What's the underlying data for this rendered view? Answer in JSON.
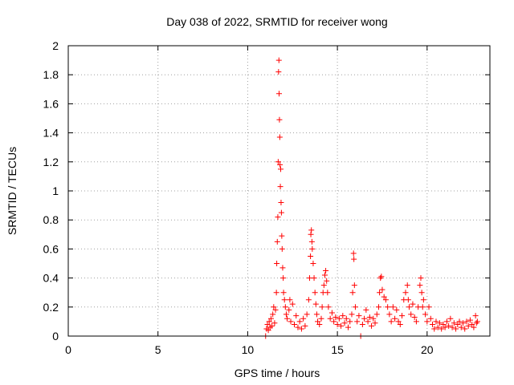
{
  "chart_data": {
    "type": "scatter",
    "title": "Day 038 of 2022, SRMTID for receiver wong",
    "xlabel": "GPS time / hours",
    "ylabel": "SRMTID / TECUs",
    "xlim": [
      0,
      23.5
    ],
    "ylim": [
      0,
      2
    ],
    "x_ticks": [
      0,
      5,
      10,
      15,
      20
    ],
    "x_tick_labels": [
      "0",
      "5",
      "10",
      "15",
      "20"
    ],
    "y_ticks": [
      0,
      0.2,
      0.4,
      0.6,
      0.8,
      1,
      1.2,
      1.4,
      1.6,
      1.8,
      2
    ],
    "y_tick_labels": [
      "0",
      "0.2",
      "0.4",
      "0.6",
      "0.8",
      "1",
      "1.2",
      "1.4",
      "1.6",
      "1.8",
      "2"
    ],
    "grid": true,
    "marker": "plus",
    "color": "#ff0000",
    "series": [
      {
        "name": "SRMTID",
        "points": [
          [
            11.0,
            0.0
          ],
          [
            16.3,
            0.0
          ],
          [
            11.05,
            0.05
          ],
          [
            11.1,
            0.08
          ],
          [
            11.15,
            0.04
          ],
          [
            11.2,
            0.1
          ],
          [
            11.25,
            0.06
          ],
          [
            11.3,
            0.12
          ],
          [
            11.35,
            0.07
          ],
          [
            11.4,
            0.15
          ],
          [
            11.45,
            0.2
          ],
          [
            11.5,
            0.09
          ],
          [
            11.55,
            0.18
          ],
          [
            11.6,
            0.3
          ],
          [
            11.62,
            0.5
          ],
          [
            11.65,
            0.65
          ],
          [
            11.68,
            0.82
          ],
          [
            11.7,
            1.2
          ],
          [
            11.72,
            1.82
          ],
          [
            11.74,
            1.9
          ],
          [
            11.75,
            1.67
          ],
          [
            11.77,
            1.49
          ],
          [
            11.79,
            1.37
          ],
          [
            11.8,
            1.18
          ],
          [
            11.82,
            1.03
          ],
          [
            11.84,
            1.15
          ],
          [
            11.86,
            0.92
          ],
          [
            11.88,
            0.85
          ],
          [
            11.9,
            0.69
          ],
          [
            11.92,
            0.6
          ],
          [
            11.95,
            0.47
          ],
          [
            11.98,
            0.4
          ],
          [
            12.0,
            0.3
          ],
          [
            12.05,
            0.25
          ],
          [
            12.1,
            0.2
          ],
          [
            12.15,
            0.15
          ],
          [
            12.2,
            0.12
          ],
          [
            12.3,
            0.18
          ],
          [
            12.35,
            0.25
          ],
          [
            12.4,
            0.1
          ],
          [
            12.5,
            0.22
          ],
          [
            12.6,
            0.08
          ],
          [
            12.7,
            0.14
          ],
          [
            12.8,
            0.06
          ],
          [
            12.9,
            0.1
          ],
          [
            13.0,
            0.05
          ],
          [
            13.1,
            0.12
          ],
          [
            13.2,
            0.07
          ],
          [
            13.3,
            0.15
          ],
          [
            13.4,
            0.25
          ],
          [
            13.45,
            0.4
          ],
          [
            13.5,
            0.55
          ],
          [
            13.52,
            0.7
          ],
          [
            13.55,
            0.73
          ],
          [
            13.58,
            0.65
          ],
          [
            13.6,
            0.6
          ],
          [
            13.65,
            0.5
          ],
          [
            13.7,
            0.4
          ],
          [
            13.75,
            0.3
          ],
          [
            13.8,
            0.22
          ],
          [
            13.85,
            0.15
          ],
          [
            13.9,
            0.1
          ],
          [
            14.0,
            0.08
          ],
          [
            14.1,
            0.12
          ],
          [
            14.15,
            0.2
          ],
          [
            14.2,
            0.3
          ],
          [
            14.25,
            0.35
          ],
          [
            14.3,
            0.42
          ],
          [
            14.35,
            0.45
          ],
          [
            14.4,
            0.38
          ],
          [
            14.45,
            0.3
          ],
          [
            14.5,
            0.2
          ],
          [
            14.6,
            0.12
          ],
          [
            14.7,
            0.16
          ],
          [
            14.8,
            0.1
          ],
          [
            14.9,
            0.13
          ],
          [
            15.0,
            0.08
          ],
          [
            15.1,
            0.12
          ],
          [
            15.2,
            0.07
          ],
          [
            15.3,
            0.14
          ],
          [
            15.4,
            0.09
          ],
          [
            15.5,
            0.12
          ],
          [
            15.6,
            0.06
          ],
          [
            15.7,
            0.1
          ],
          [
            15.8,
            0.15
          ],
          [
            15.85,
            0.3
          ],
          [
            15.9,
            0.57
          ],
          [
            15.92,
            0.53
          ],
          [
            15.95,
            0.35
          ],
          [
            16.0,
            0.2
          ],
          [
            16.1,
            0.1
          ],
          [
            16.2,
            0.14
          ],
          [
            16.4,
            0.08
          ],
          [
            16.5,
            0.12
          ],
          [
            16.6,
            0.18
          ],
          [
            16.7,
            0.1
          ],
          [
            16.8,
            0.13
          ],
          [
            16.9,
            0.07
          ],
          [
            17.0,
            0.12
          ],
          [
            17.1,
            0.09
          ],
          [
            17.2,
            0.15
          ],
          [
            17.3,
            0.2
          ],
          [
            17.35,
            0.3
          ],
          [
            17.4,
            0.4
          ],
          [
            17.45,
            0.41
          ],
          [
            17.5,
            0.32
          ],
          [
            17.6,
            0.27
          ],
          [
            17.7,
            0.25
          ],
          [
            17.8,
            0.2
          ],
          [
            17.9,
            0.15
          ],
          [
            18.0,
            0.1
          ],
          [
            18.1,
            0.2
          ],
          [
            18.2,
            0.12
          ],
          [
            18.3,
            0.18
          ],
          [
            18.4,
            0.1
          ],
          [
            18.5,
            0.08
          ],
          [
            18.6,
            0.14
          ],
          [
            18.7,
            0.25
          ],
          [
            18.8,
            0.3
          ],
          [
            18.9,
            0.35
          ],
          [
            18.95,
            0.25
          ],
          [
            19.0,
            0.2
          ],
          [
            19.1,
            0.15
          ],
          [
            19.2,
            0.22
          ],
          [
            19.3,
            0.13
          ],
          [
            19.4,
            0.1
          ],
          [
            19.5,
            0.2
          ],
          [
            19.6,
            0.35
          ],
          [
            19.65,
            0.4
          ],
          [
            19.7,
            0.3
          ],
          [
            19.75,
            0.2
          ],
          [
            19.8,
            0.25
          ],
          [
            19.9,
            0.15
          ],
          [
            20.0,
            0.1
          ],
          [
            20.1,
            0.2
          ],
          [
            20.2,
            0.12
          ],
          [
            20.3,
            0.08
          ],
          [
            20.4,
            0.05
          ],
          [
            20.5,
            0.1
          ],
          [
            20.6,
            0.06
          ],
          [
            20.7,
            0.09
          ],
          [
            20.8,
            0.05
          ],
          [
            20.9,
            0.08
          ],
          [
            21.0,
            0.06
          ],
          [
            21.1,
            0.1
          ],
          [
            21.2,
            0.07
          ],
          [
            21.3,
            0.12
          ],
          [
            21.4,
            0.06
          ],
          [
            21.5,
            0.09
          ],
          [
            21.6,
            0.05
          ],
          [
            21.7,
            0.08
          ],
          [
            21.8,
            0.1
          ],
          [
            21.9,
            0.06
          ],
          [
            22.0,
            0.09
          ],
          [
            22.1,
            0.05
          ],
          [
            22.2,
            0.1
          ],
          [
            22.3,
            0.07
          ],
          [
            22.4,
            0.11
          ],
          [
            22.5,
            0.08
          ],
          [
            22.6,
            0.06
          ],
          [
            22.7,
            0.14
          ],
          [
            22.75,
            0.09
          ],
          [
            22.8,
            0.1
          ]
        ]
      }
    ]
  }
}
